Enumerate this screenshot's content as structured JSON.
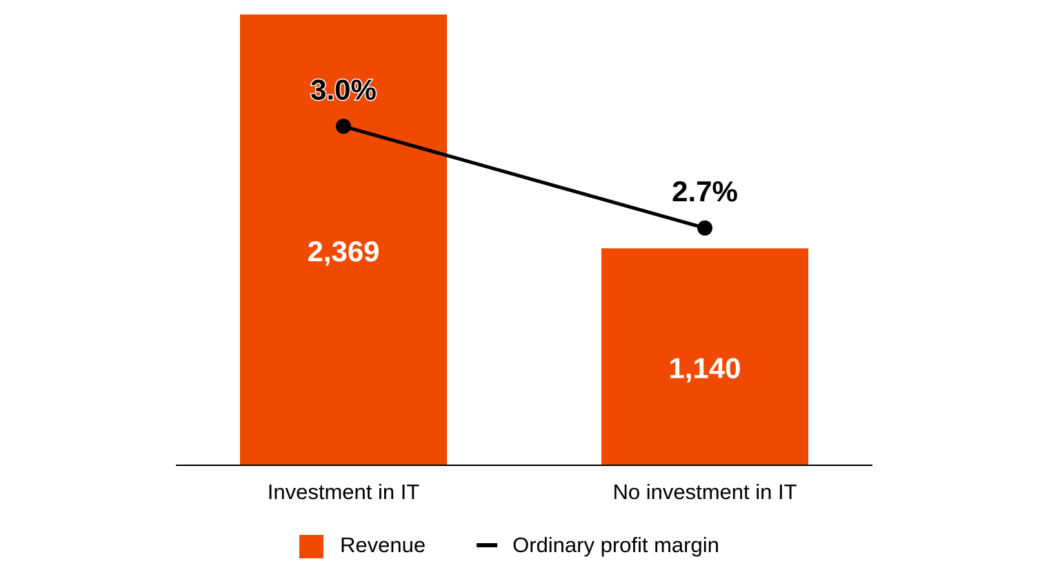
{
  "chart_data": {
    "type": "combo",
    "categories": [
      "Investment in IT",
      "No investment in IT"
    ],
    "series": [
      {
        "name": "Revenue",
        "type": "bar",
        "color": "#f04a00",
        "values": [
          2369,
          1140
        ],
        "value_labels": [
          "2,369",
          "1,140"
        ]
      },
      {
        "name": "Ordinary profit margin",
        "type": "line",
        "axis": "y2",
        "color": "#000000",
        "values": [
          3.0,
          2.7
        ],
        "value_labels": [
          "3.0%",
          "2.7%"
        ]
      }
    ],
    "ylim": [
      0,
      2369
    ],
    "y2lim": [
      2.0,
      3.33
    ],
    "legend": "bottom"
  }
}
